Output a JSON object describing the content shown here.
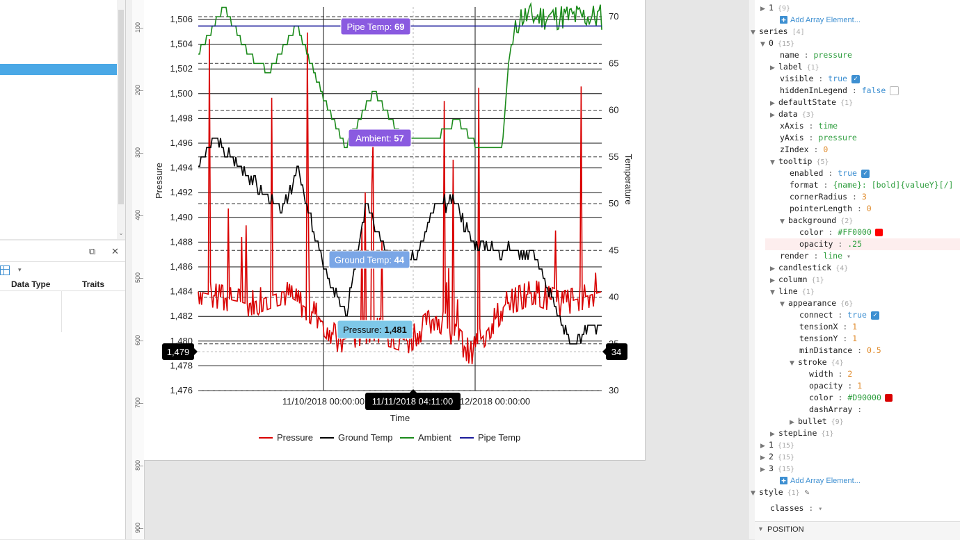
{
  "left_panel": {
    "columns": [
      "Data Type",
      "Traits"
    ]
  },
  "chart_data": {
    "type": "line",
    "xlabel": "Time",
    "ylabel_left": "Pressure",
    "ylabel_right": "Temperature",
    "x_ticks": [
      "11/10/2018 00:00:00",
      "11/11/2018 00:00:00",
      "11/12/2018 00:00:00"
    ],
    "y_left_ticks": [
      "1,476",
      "1,478",
      "1,480",
      "1,482",
      "1,484",
      "1,486",
      "1,488",
      "1,490",
      "1,492",
      "1,494",
      "1,496",
      "1,498",
      "1,500",
      "1,502",
      "1,504",
      "1,506"
    ],
    "y_left_range": [
      1476,
      1506
    ],
    "y_right_ticks": [
      "30",
      "35",
      "40",
      "45",
      "50",
      "55",
      "60",
      "65",
      "70"
    ],
    "y_right_range": [
      30,
      70
    ],
    "series": [
      {
        "name": "Pressure",
        "axis": "left",
        "color": "#D90000"
      },
      {
        "name": "Ground Temp",
        "axis": "right",
        "color": "#000000"
      },
      {
        "name": "Ambient",
        "axis": "right",
        "color": "#1a8a1a"
      },
      {
        "name": "Pipe Temp",
        "axis": "right",
        "color": "#1a1a9a",
        "value": 69
      }
    ],
    "tooltips": [
      {
        "text": "Pipe Temp: ",
        "value": "69",
        "color": "#8a5ae0"
      },
      {
        "text": "Ambient: ",
        "value": "57",
        "color": "#8a5ae0"
      },
      {
        "text": "Ground Temp: ",
        "value": "44",
        "color": "#7aa6e6"
      },
      {
        "text": "Pressure: ",
        "value": "1,481",
        "color": "#7ec8e8"
      }
    ],
    "cursor_x_label": "11/11/2018 04:11:00",
    "cursor_y_left_label": "1,479",
    "cursor_y_right_label": "34"
  },
  "ruler": {
    "ticks": [
      "100",
      "200",
      "300",
      "400",
      "500",
      "600",
      "700",
      "800",
      "900"
    ]
  },
  "props": {
    "rows": [
      {
        "indent": 0,
        "tw": "▶",
        "k": "1",
        "c": "{9}"
      },
      {
        "indent": 1,
        "add": "Add Array Element..."
      },
      {
        "indent": -1,
        "tw": "▼",
        "k": "series",
        "c": "[4]"
      },
      {
        "indent": 0,
        "tw": "▼",
        "k": "0",
        "c": "{15}"
      },
      {
        "indent": 1,
        "k": "name",
        "v": "pressure",
        "t": "str"
      },
      {
        "indent": 1,
        "tw": "▶",
        "k": "label",
        "c": "{1}"
      },
      {
        "indent": 1,
        "k": "visible",
        "v": "true",
        "t": "bool",
        "chk": "on"
      },
      {
        "indent": 1,
        "k": "hiddenInLegend",
        "v": "false",
        "t": "bool",
        "chk": "off"
      },
      {
        "indent": 1,
        "tw": "▶",
        "k": "defaultState",
        "c": "{1}"
      },
      {
        "indent": 1,
        "tw": "▶",
        "k": "data",
        "c": "{3}"
      },
      {
        "indent": 1,
        "k": "xAxis",
        "v": "time",
        "t": "str"
      },
      {
        "indent": 1,
        "k": "yAxis",
        "v": "pressure",
        "t": "str"
      },
      {
        "indent": 1,
        "k": "zIndex",
        "v": "0",
        "t": "num"
      },
      {
        "indent": 1,
        "tw": "▼",
        "k": "tooltip",
        "c": "{5}"
      },
      {
        "indent": 2,
        "k": "enabled",
        "v": "true",
        "t": "bool",
        "chk": "on"
      },
      {
        "indent": 2,
        "k": "format",
        "v": "{name}: [bold]{valueY}[/]",
        "t": "str"
      },
      {
        "indent": 2,
        "k": "cornerRadius",
        "v": "3",
        "t": "num"
      },
      {
        "indent": 2,
        "k": "pointerLength",
        "v": "0",
        "t": "num"
      },
      {
        "indent": 2,
        "tw": "▼",
        "k": "background",
        "c": "{2}"
      },
      {
        "indent": 3,
        "k": "color",
        "v": "#FF0000",
        "t": "str",
        "swatch": "#FF0000"
      },
      {
        "indent": 3,
        "k": "opacity",
        "v": ".25",
        "t": "str",
        "hl": true
      },
      {
        "indent": 1,
        "k": "render",
        "v": "line",
        "t": "str",
        "dd": true
      },
      {
        "indent": 1,
        "tw": "▶",
        "k": "candlestick",
        "c": "{4}"
      },
      {
        "indent": 1,
        "tw": "▶",
        "k": "column",
        "c": "{1}"
      },
      {
        "indent": 1,
        "tw": "▼",
        "k": "line",
        "c": "{1}"
      },
      {
        "indent": 2,
        "tw": "▼",
        "k": "appearance",
        "c": "{6}"
      },
      {
        "indent": 3,
        "k": "connect",
        "v": "true",
        "t": "bool",
        "chk": "on"
      },
      {
        "indent": 3,
        "k": "tensionX",
        "v": "1",
        "t": "num"
      },
      {
        "indent": 3,
        "k": "tensionY",
        "v": "1",
        "t": "num"
      },
      {
        "indent": 3,
        "k": "minDistance",
        "v": "0.5",
        "t": "num"
      },
      {
        "indent": 3,
        "tw": "▼",
        "k": "stroke",
        "c": "{4}"
      },
      {
        "indent": 4,
        "k": "width",
        "v": "2",
        "t": "num"
      },
      {
        "indent": 4,
        "k": "opacity",
        "v": "1",
        "t": "num"
      },
      {
        "indent": 4,
        "k": "color",
        "v": "#D90000",
        "t": "str",
        "swatch": "#D90000"
      },
      {
        "indent": 4,
        "k": "dashArray",
        "v": "",
        "t": "str"
      },
      {
        "indent": 3,
        "tw": "▶",
        "k": "bullet",
        "c": "{9}"
      },
      {
        "indent": 1,
        "tw": "▶",
        "k": "stepLine",
        "c": "{1}"
      },
      {
        "indent": 0,
        "tw": "▶",
        "k": "1",
        "c": "{15}"
      },
      {
        "indent": 0,
        "tw": "▶",
        "k": "2",
        "c": "{15}"
      },
      {
        "indent": 0,
        "tw": "▶",
        "k": "3",
        "c": "{15}"
      },
      {
        "indent": 1,
        "add": "Add Array Element..."
      },
      {
        "indent": -1,
        "tw": "▼",
        "k": "style",
        "c": "{1}",
        "icon": true
      },
      {
        "indent": 0,
        "k": "classes",
        "v": "",
        "t": "str",
        "dd": true
      }
    ]
  },
  "position_bar": {
    "label": "POSITION"
  }
}
